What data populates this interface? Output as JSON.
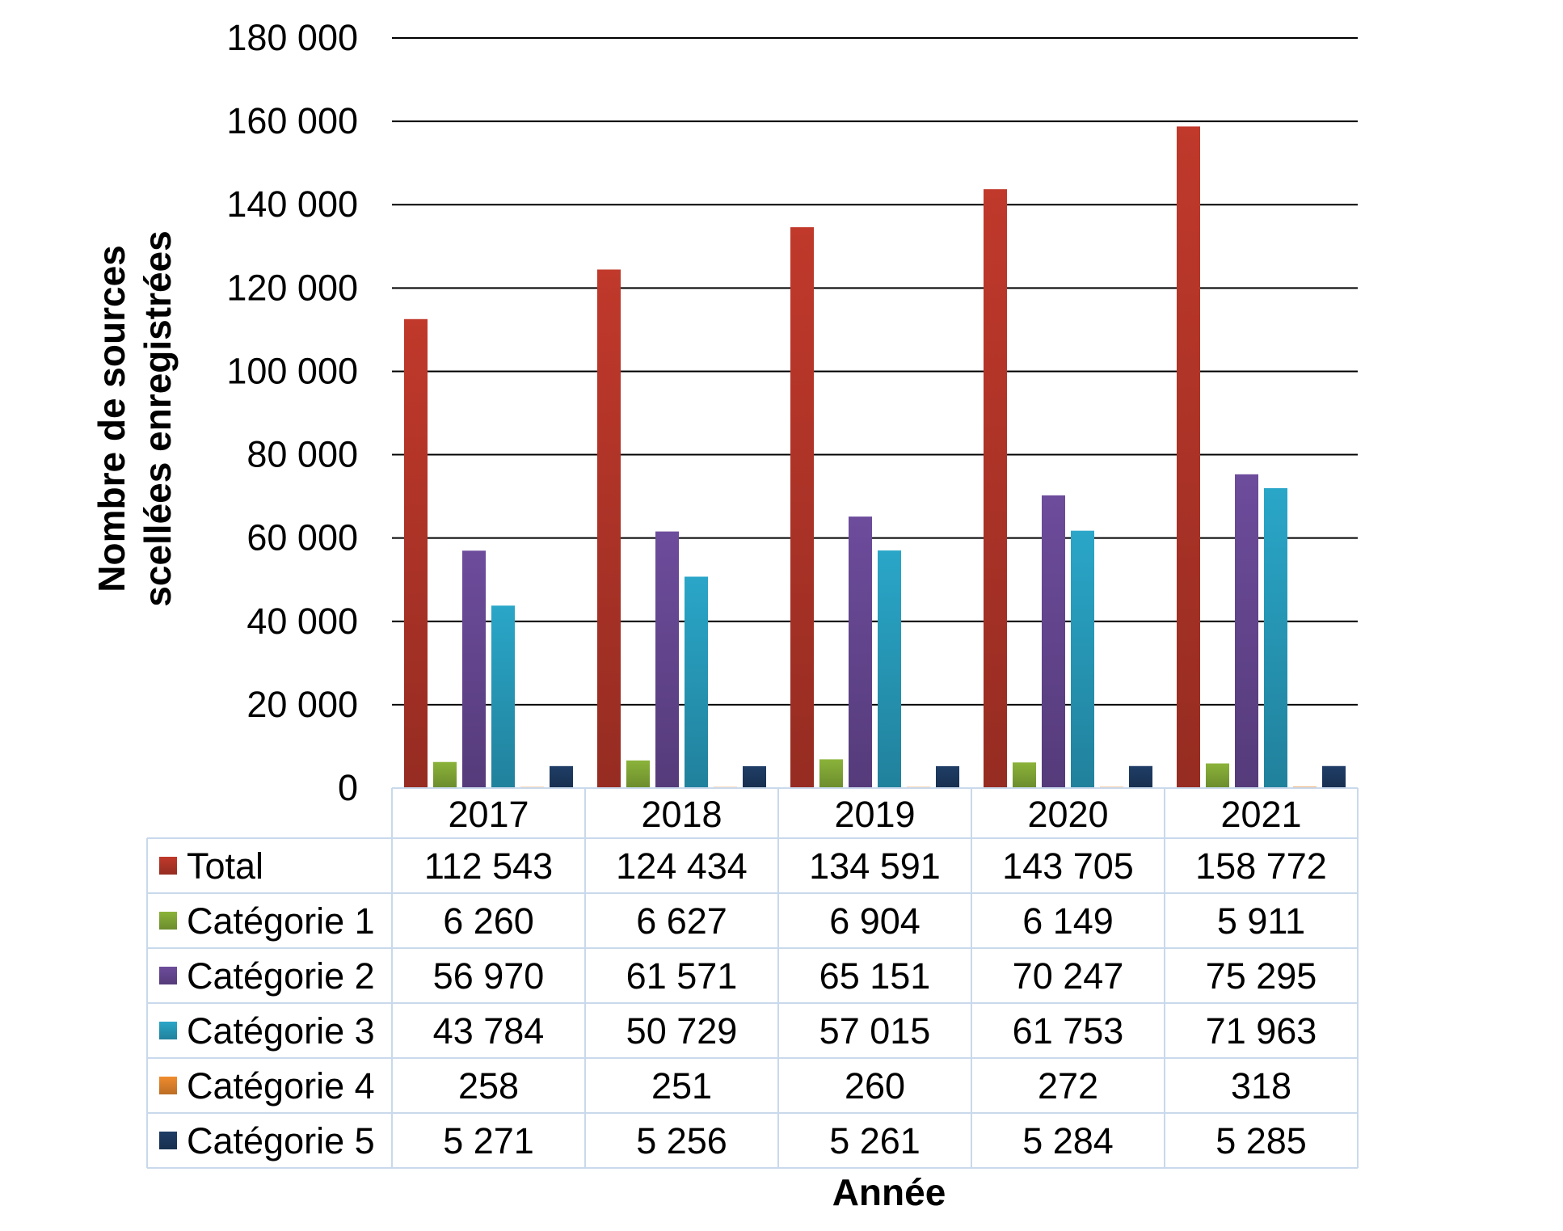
{
  "chart_data": {
    "type": "bar",
    "ylabel_line1": "Nombre de sources",
    "ylabel_line2": "scellées enregistrées",
    "xlabel": "Année",
    "ylim": [
      0,
      180000
    ],
    "y_ticks": [
      0,
      20000,
      40000,
      60000,
      80000,
      100000,
      120000,
      140000,
      160000,
      180000
    ],
    "y_tick_labels": [
      "0",
      "20 000",
      "40 000",
      "60 000",
      "80 000",
      "100 000",
      "120 000",
      "140 000",
      "160 000",
      "180 000"
    ],
    "grid": true,
    "legend": "data-table",
    "categories": [
      "2017",
      "2018",
      "2019",
      "2020",
      "2021"
    ],
    "series": [
      {
        "name": "Total",
        "color": "#c0392b",
        "values": [
          112543,
          124434,
          134591,
          143705,
          158772
        ],
        "labels": [
          "112 543",
          "124 434",
          "134 591",
          "143 705",
          "158 772"
        ]
      },
      {
        "name": "Catégorie 1",
        "color": "#8bb33a",
        "values": [
          6260,
          6627,
          6904,
          6149,
          5911
        ],
        "labels": [
          "6 260",
          "6 627",
          "6 904",
          "6 149",
          "5 911"
        ]
      },
      {
        "name": "Catégorie 2",
        "color": "#6d4c9c",
        "values": [
          56970,
          61571,
          65151,
          70247,
          75295
        ],
        "labels": [
          "56 970",
          "61 571",
          "65 151",
          "70 247",
          "75 295"
        ]
      },
      {
        "name": "Catégorie 3",
        "color": "#2aa6c8",
        "values": [
          43784,
          50729,
          57015,
          61753,
          71963
        ],
        "labels": [
          "43 784",
          "50 729",
          "57 015",
          "61 753",
          "71 963"
        ]
      },
      {
        "name": "Catégorie 4",
        "color": "#f08c2e",
        "values": [
          258,
          251,
          260,
          272,
          318
        ],
        "labels": [
          "258",
          "251",
          "260",
          "272",
          "318"
        ]
      },
      {
        "name": "Catégorie 5",
        "color": "#1f3d66",
        "values": [
          5271,
          5256,
          5261,
          5284,
          5285
        ],
        "labels": [
          "5 271",
          "5 256",
          "5 261",
          "5 284",
          "5 285"
        ]
      }
    ]
  }
}
